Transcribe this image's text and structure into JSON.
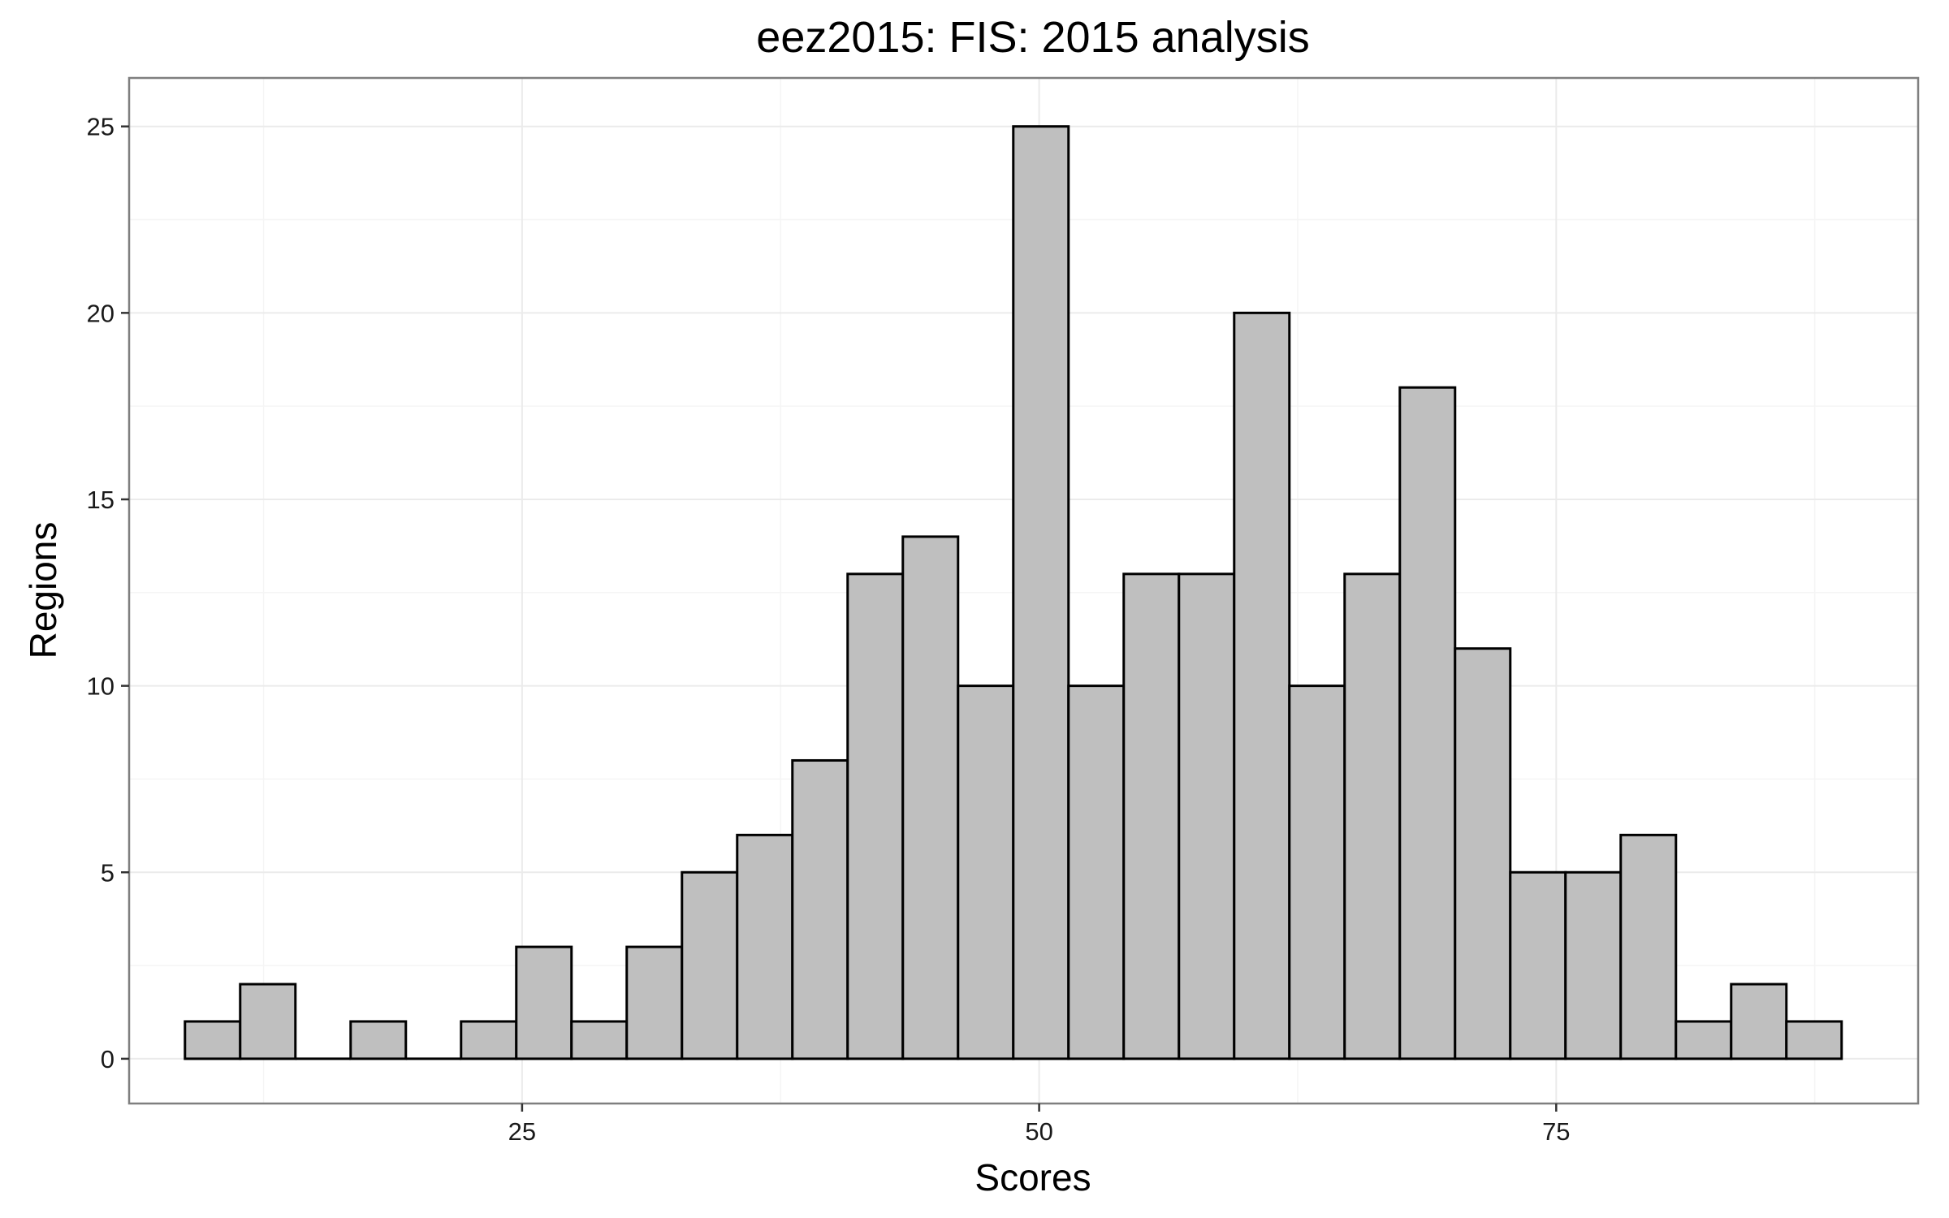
{
  "chart_data": {
    "type": "histogram",
    "title": "eez2015: FIS: 2015 analysis",
    "xlabel": "Scores",
    "ylabel": "Regions",
    "bin_start": 8.7,
    "bin_width": 2.67,
    "counts": [
      1,
      2,
      0,
      1,
      0,
      1,
      3,
      1,
      3,
      5,
      6,
      8,
      13,
      14,
      10,
      25,
      10,
      13,
      13,
      20,
      10,
      13,
      18,
      11,
      5,
      5,
      6,
      1,
      2,
      1
    ],
    "xlim": [
      6,
      92.5
    ],
    "ylim": [
      -1.2,
      26.3
    ],
    "x_ticks": [
      25,
      50,
      75
    ],
    "x_minor_ticks": [
      12.5,
      37.5,
      62.5,
      87.5
    ],
    "y_ticks": [
      0,
      5,
      10,
      15,
      20,
      25
    ],
    "y_minor_ticks": [
      2.5,
      7.5,
      12.5,
      17.5,
      22.5
    ],
    "grid": true,
    "legend": "none",
    "bar_fill": "#bfbfbf",
    "bar_stroke": "#000000"
  }
}
